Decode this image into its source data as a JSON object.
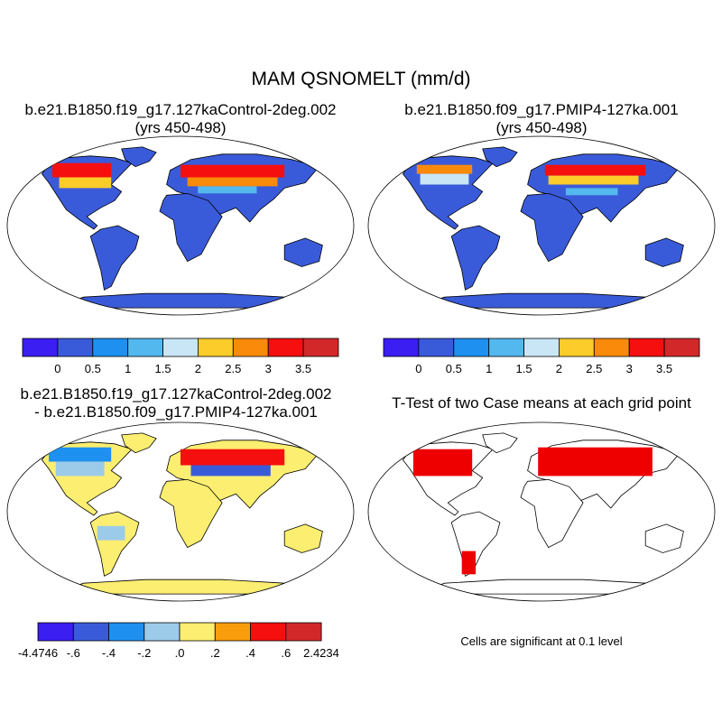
{
  "figure": {
    "title": "MAM QSNOMELT (mm/d)"
  },
  "panels": {
    "p1": {
      "title_line1": "b.e21.B1850.f19_g17.127kaControl-2deg.002",
      "title_line2": "(yrs 450-498)"
    },
    "p2": {
      "title_line1": "b.e21.B1850.f09_g17.PMIP4-127ka.001",
      "title_line2": "(yrs 450-498)"
    },
    "p3": {
      "title_line1": "b.e21.B1850.f19_g17.127kaControl-2deg.002",
      "title_line2": "- b.e21.B1850.f09_g17.PMIP4-127ka.001"
    },
    "p4": {
      "title_line1": "T-Test of two Case means at each grid point",
      "footnote": "Cells are significant at 0.1 level"
    }
  },
  "chart_data": [
    {
      "type": "heatmap",
      "title": "b.e21.B1850.f19_g17.127kaControl-2deg.002 (yrs 450-498)",
      "projection": "Robinson",
      "colorbar": {
        "levels": [
          "0",
          "0.5",
          "1",
          "1.5",
          "2",
          "2.5",
          "3",
          "3.5"
        ],
        "colors": [
          "#3a1ef2",
          "#3a5bd9",
          "#1e90f0",
          "#53b8ee",
          "#c8e6f6",
          "#fccd2a",
          "#fa8a0a",
          "#f50f0f",
          "#d2282a"
        ]
      }
    },
    {
      "type": "heatmap",
      "title": "b.e21.B1850.f09_g17.PMIP4-127ka.001 (yrs 450-498)",
      "projection": "Robinson",
      "colorbar": {
        "levels": [
          "0",
          "0.5",
          "1",
          "1.5",
          "2",
          "2.5",
          "3",
          "3.5"
        ],
        "colors": [
          "#3a1ef2",
          "#3a5bd9",
          "#1e90f0",
          "#53b8ee",
          "#c8e6f6",
          "#fccd2a",
          "#fa8a0a",
          "#f50f0f",
          "#d2282a"
        ]
      }
    },
    {
      "type": "heatmap",
      "title": "b.e21.B1850.f19_g17.127kaControl-2deg.002 - b.e21.B1850.f09_g17.PMIP4-127ka.001",
      "projection": "Robinson",
      "colorbar": {
        "levels": [
          "-4.4746",
          "-.6",
          "-.4",
          "-.2",
          ".0",
          ".2",
          ".4",
          ".6",
          "2.4234"
        ],
        "colors": [
          "#3a1ef2",
          "#3a5bd9",
          "#1e90f0",
          "#9ccbea",
          "#fbee70",
          "#fa9d0c",
          "#f50f0f",
          "#d2282a"
        ]
      }
    },
    {
      "type": "heatmap",
      "title": "T-Test of two Case means at each grid point",
      "projection": "Robinson",
      "significance_color": "#ee0000",
      "note": "Cells are significant at 0.1 level"
    }
  ]
}
